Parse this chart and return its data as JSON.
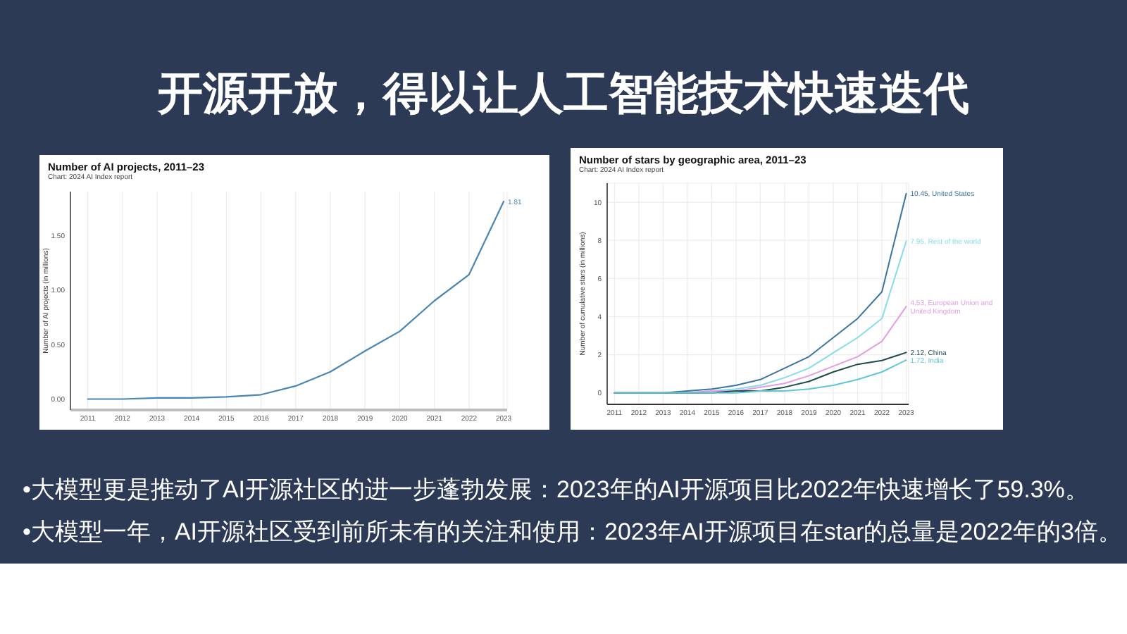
{
  "chart_data": [
    {
      "type": "other",
      "title": "开源开放，得以让人工智能技术快速迭代"
    },
    {
      "type": "line",
      "title": "Number of AI projects, 2011–23",
      "subtitle": "Chart: 2024 AI Index report",
      "ylabel": "Number of AI projects (in millions)",
      "x": [
        2011,
        2012,
        2013,
        2014,
        2015,
        2016,
        2017,
        2018,
        2019,
        2020,
        2021,
        2022,
        2023
      ],
      "series": [
        {
          "color": "#4a86b5",
          "values": [
            0.0,
            0.0,
            0.01,
            0.01,
            0.02,
            0.04,
            0.12,
            0.25,
            0.44,
            0.62,
            0.9,
            1.14,
            1.81
          ],
          "value_labels": [
            null,
            null,
            null,
            null,
            null,
            null,
            null,
            null,
            null,
            null,
            null,
            null,
            "1.81"
          ]
        }
      ],
      "xlim": [
        2010.5,
        2023.1
      ],
      "xticks": [
        2011,
        2012,
        2013,
        2014,
        2015,
        2016,
        2017,
        2018,
        2019,
        2020,
        2021,
        2022,
        2023
      ],
      "ylim": [
        -0.1,
        1.9
      ],
      "yticks": [
        {
          "value": 0,
          "label": "0.00"
        },
        {
          "value": 0.5,
          "label": "0.50"
        },
        {
          "value": 1,
          "label": "1.00"
        },
        {
          "value": 1.5,
          "label": "1.50"
        }
      ],
      "grid": "x"
    },
    {
      "type": "line",
      "title": "Number of stars by geographic area, 2011–23",
      "subtitle": "Chart: 2024 AI Index report",
      "ylabel": "Number of cumulative stars (in millions)",
      "x": [
        2011,
        2012,
        2013,
        2014,
        2015,
        2016,
        2017,
        2018,
        2019,
        2020,
        2021,
        2022,
        2023
      ],
      "series": [
        {
          "name": "United States",
          "color": "#3b74a2",
          "values": [
            0,
            0,
            0,
            0.1,
            0.2,
            0.4,
            0.7,
            1.3,
            1.9,
            2.9,
            3.9,
            5.3,
            10.45
          ],
          "value_labels": [
            null,
            null,
            null,
            null,
            null,
            null,
            null,
            null,
            null,
            null,
            null,
            null,
            "10.45,"
          ]
        },
        {
          "name": "Rest of the world",
          "color": "#86dbe9",
          "values": [
            0,
            0,
            0,
            0,
            0.1,
            0.2,
            0.4,
            0.8,
            1.3,
            2.1,
            2.9,
            3.9,
            7.95
          ],
          "value_labels": [
            null,
            null,
            null,
            null,
            null,
            null,
            null,
            null,
            null,
            null,
            null,
            null,
            "7.95,"
          ]
        },
        {
          "name": "European Union and United Kingdom",
          "color": "#e49de2",
          "values": [
            null,
            null,
            0,
            0,
            0.1,
            0.1,
            0.3,
            0.5,
            0.9,
            1.4,
            1.9,
            2.7,
            4.53
          ],
          "value_labels": [
            null,
            null,
            null,
            null,
            null,
            null,
            null,
            null,
            null,
            null,
            null,
            null,
            "4.53,"
          ]
        },
        {
          "name": "China",
          "color": "#1e4b4c",
          "values": [
            0,
            0,
            0,
            0,
            0,
            0.1,
            0.1,
            0.3,
            0.6,
            1.1,
            1.5,
            1.7,
            2.12
          ],
          "value_labels": [
            null,
            null,
            null,
            null,
            null,
            null,
            null,
            null,
            null,
            null,
            null,
            null,
            "2.12,"
          ]
        },
        {
          "name": "India",
          "color": "#5ec6d6",
          "values": [
            0,
            0,
            0,
            0,
            0,
            0,
            0.1,
            0.1,
            0.2,
            0.4,
            0.7,
            1.1,
            1.72
          ],
          "value_labels": [
            null,
            null,
            null,
            null,
            null,
            null,
            null,
            null,
            null,
            null,
            null,
            null,
            "1.72,"
          ]
        }
      ],
      "xlim": [
        2010.7,
        2023.1
      ],
      "xticks": [
        2011,
        2012,
        2013,
        2014,
        2015,
        2016,
        2017,
        2018,
        2019,
        2020,
        2021,
        2022,
        2023
      ],
      "ylim": [
        -0.6,
        11
      ],
      "yticks": [
        0,
        2,
        4,
        6,
        8,
        10
      ],
      "grid": true
    },
    {
      "type": "other",
      "annotations": [
        "•大模型更是推动了AI开源社区的进一步蓬勃发展：2023年的AI开源项目比2022年快速增长了59.3%。",
        "•大模型一年，AI开源社区受到前所未有的关注和使用：2023年AI开源项目在star的总量是2022年的3倍。"
      ]
    }
  ]
}
